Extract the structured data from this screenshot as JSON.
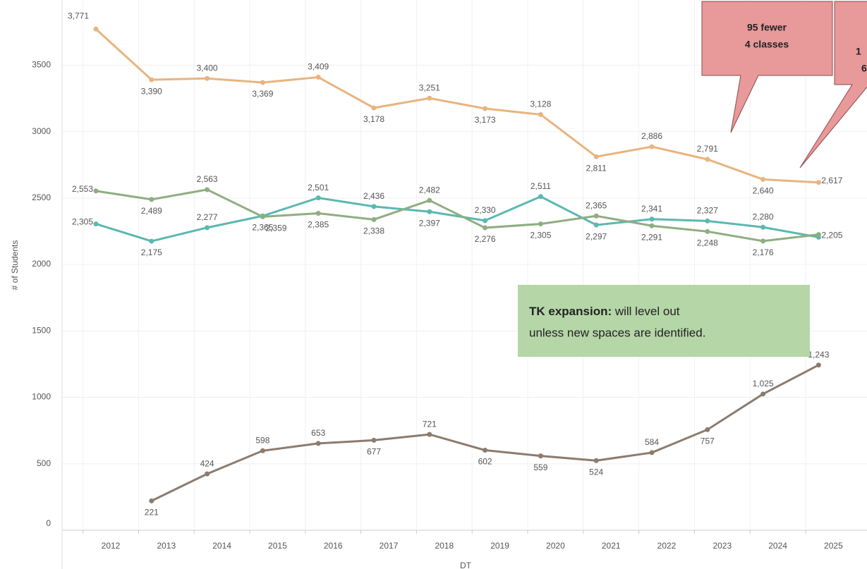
{
  "chart_data": {
    "type": "line",
    "y_label": "# of Students",
    "x_label": "DT",
    "categories": [
      "2012",
      "2013",
      "2014",
      "2015",
      "2016",
      "2017",
      "2018",
      "2019",
      "2020",
      "2021",
      "2022",
      "2023",
      "2024",
      "2025"
    ],
    "series": [
      {
        "color": "#e8b47f",
        "values": [
          3771,
          3390,
          3400,
          3369,
          3409,
          3178,
          3251,
          3173,
          3128,
          2811,
          2886,
          2791,
          2640,
          2617
        ],
        "value_labels": [
          "3,771",
          "3,390",
          "3,400",
          "3,369",
          "3,409",
          "3,178",
          "3,251",
          "3,173",
          "3,128",
          "2,811",
          "2,886",
          "2,791",
          "2,640",
          "2,617"
        ]
      },
      {
        "color": "#5ab8b0",
        "values": [
          2305,
          2175,
          2277,
          2365,
          2501,
          2436,
          2397,
          2330,
          2511,
          2297,
          2341,
          2327,
          2280,
          2205
        ],
        "value_labels": [
          "2,305",
          "2,175",
          "2,277",
          "2,365",
          "2,501",
          "2,436",
          "2,397",
          "2,330",
          "2,511",
          "2,297",
          "2,341",
          "2,327",
          "2,280",
          "2,205"
        ]
      },
      {
        "color": "#8fad82",
        "values": [
          2553,
          2489,
          2563,
          2359,
          2385,
          2338,
          2482,
          2276,
          2305,
          2365,
          2291,
          2248,
          2176,
          2225
        ],
        "value_labels": [
          "2,553",
          "2,489",
          "2,563",
          "2,359",
          "2,385",
          "2,338",
          "2,482",
          "2,276",
          "2,305",
          "2,365",
          "2,291",
          "2,248",
          "2,176",
          null
        ]
      },
      {
        "color": "#8c7b6e",
        "values": [
          null,
          221,
          424,
          598,
          653,
          677,
          721,
          602,
          559,
          524,
          584,
          757,
          1025,
          1243
        ],
        "value_labels": [
          null,
          "221",
          "424",
          "598",
          "653",
          "677",
          "721",
          "602",
          "559",
          "524",
          "584",
          "757",
          "1,025",
          "1,243"
        ]
      }
    ],
    "ylim": [
      0,
      3990
    ],
    "yticks": [
      0,
      500,
      1000,
      1500,
      2000,
      2500,
      3000,
      3500
    ],
    "grid": true,
    "annotations": [
      {
        "lines": [
          "95 fewer",
          "4 classes"
        ]
      },
      {
        "lines": [
          "1",
          "6"
        ]
      },
      {
        "bold": "TK expansion:",
        "text": " will level out",
        "text2": "unless new spaces are identified."
      }
    ]
  }
}
